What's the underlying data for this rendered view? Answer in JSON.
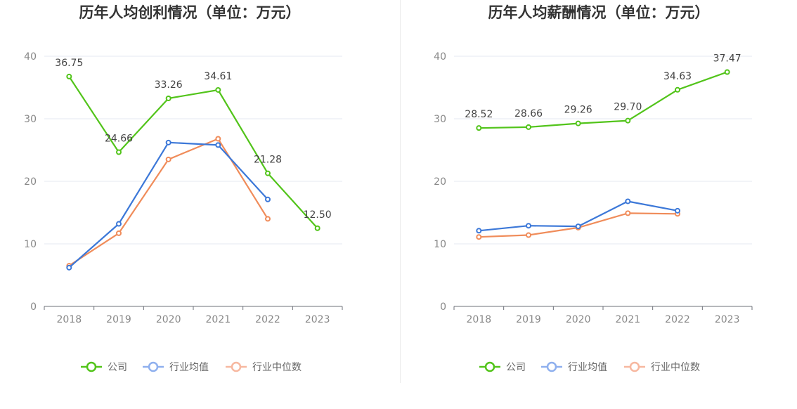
{
  "chart_data": [
    {
      "type": "line",
      "title": "历年人均创利情况（单位：万元）",
      "categories": [
        "2018",
        "2019",
        "2020",
        "2021",
        "2022",
        "2023"
      ],
      "ylim": [
        0,
        40
      ],
      "yticks": [
        0,
        10,
        20,
        30,
        40
      ],
      "grid": true,
      "legend": "bottom",
      "series": [
        {
          "name": "公司",
          "color": "#52c41a",
          "values": [
            36.75,
            24.66,
            33.26,
            34.61,
            21.28,
            12.5
          ],
          "labels": [
            "36.75",
            "24.66",
            "33.26",
            "34.61",
            "21.28",
            "12.50"
          ]
        },
        {
          "name": "行业均值",
          "color": "#3c78d8",
          "values": [
            6.2,
            13.2,
            26.2,
            25.8,
            17.1,
            null
          ]
        },
        {
          "name": "行业中位数",
          "color": "#f08c5a",
          "values": [
            6.5,
            11.7,
            23.5,
            26.8,
            14.0,
            null
          ]
        }
      ]
    },
    {
      "type": "line",
      "title": "历年人均薪酬情况（单位：万元）",
      "categories": [
        "2018",
        "2019",
        "2020",
        "2021",
        "2022",
        "2023"
      ],
      "ylim": [
        0,
        40
      ],
      "yticks": [
        0,
        10,
        20,
        30,
        40
      ],
      "grid": true,
      "legend": "bottom",
      "series": [
        {
          "name": "公司",
          "color": "#52c41a",
          "values": [
            28.52,
            28.66,
            29.26,
            29.7,
            34.63,
            37.47
          ],
          "labels": [
            "28.52",
            "28.66",
            "29.26",
            "29.70",
            "34.63",
            "37.47"
          ]
        },
        {
          "name": "行业均值",
          "color": "#3c78d8",
          "values": [
            12.1,
            12.9,
            12.8,
            16.8,
            15.3,
            null
          ]
        },
        {
          "name": "行业中位数",
          "color": "#f08c5a",
          "values": [
            11.1,
            11.4,
            12.6,
            14.9,
            14.8,
            null
          ]
        }
      ]
    }
  ],
  "legend_colors": {
    "公司": "#52c41a",
    "行业均值": "#8fb0ee",
    "行业中位数": "#f7b8a0"
  }
}
